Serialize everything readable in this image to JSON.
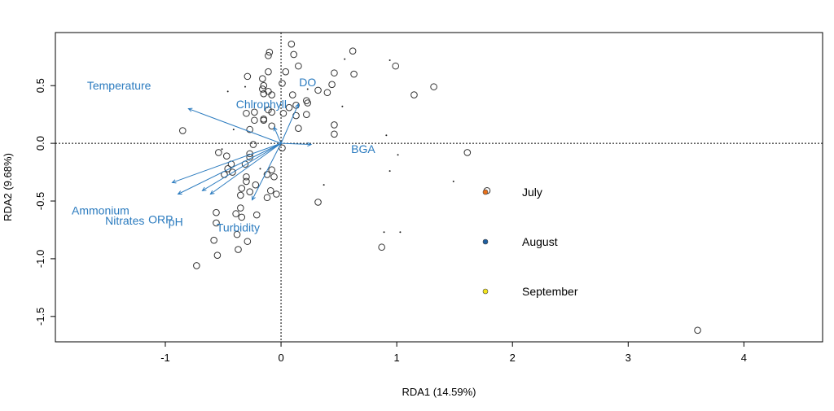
{
  "chart_data": {
    "type": "scatter",
    "subtype": "RDA biplot",
    "xlabel": "RDA1 (14.59%)",
    "ylabel": "RDA2 (9.68%)",
    "xlim": [
      -1.95,
      4.68
    ],
    "ylim": [
      -1.72,
      0.96
    ],
    "x_ticks": [
      "-1",
      "0",
      "1",
      "2",
      "3",
      "4"
    ],
    "y_ticks": [
      "-1.5",
      "-1.0",
      "-0.5",
      "0.0",
      "0.5"
    ],
    "grid": false,
    "zero_lines": "dotted",
    "arrow_color": "#2b7bbf",
    "sites": [
      [
        0.09,
        0.86
      ],
      [
        -0.1,
        0.79
      ],
      [
        -0.11,
        0.76
      ],
      [
        0.11,
        0.77
      ],
      [
        0.15,
        0.67
      ],
      [
        0.04,
        0.62
      ],
      [
        -0.11,
        0.62
      ],
      [
        -0.29,
        0.58
      ],
      [
        -0.16,
        0.56
      ],
      [
        0.01,
        0.52
      ],
      [
        -0.15,
        0.5
      ],
      [
        -0.16,
        0.47
      ],
      [
        -0.11,
        0.45
      ],
      [
        -0.08,
        0.42
      ],
      [
        -0.15,
        0.43
      ],
      [
        0.62,
        0.8
      ],
      [
        0.46,
        0.61
      ],
      [
        0.63,
        0.6
      ],
      [
        0.44,
        0.51
      ],
      [
        0.4,
        0.44
      ],
      [
        0.32,
        0.46
      ],
      [
        0.99,
        0.67
      ],
      [
        1.15,
        0.42
      ],
      [
        1.32,
        0.49
      ],
      [
        0.1,
        0.42
      ],
      [
        0.22,
        0.37
      ],
      [
        0.23,
        0.35
      ],
      [
        0.13,
        0.33
      ],
      [
        0.07,
        0.31
      ],
      [
        0.02,
        0.26
      ],
      [
        0.13,
        0.24
      ],
      [
        0.22,
        0.25
      ],
      [
        -0.3,
        0.26
      ],
      [
        -0.23,
        0.27
      ],
      [
        -0.11,
        0.29
      ],
      [
        -0.08,
        0.27
      ],
      [
        -0.23,
        0.2
      ],
      [
        -0.15,
        0.21
      ],
      [
        -0.15,
        0.2
      ],
      [
        -0.08,
        0.15
      ],
      [
        -0.27,
        0.12
      ],
      [
        0.15,
        0.13
      ],
      [
        0.46,
        0.16
      ],
      [
        0.46,
        0.08
      ],
      [
        -0.85,
        0.11
      ],
      [
        -0.24,
        -0.01
      ],
      [
        0.01,
        -0.04
      ],
      [
        -0.54,
        -0.08
      ],
      [
        -0.47,
        -0.11
      ],
      [
        -0.27,
        -0.09
      ],
      [
        -0.27,
        -0.12
      ],
      [
        -0.43,
        -0.18
      ],
      [
        -0.46,
        -0.22
      ],
      [
        -0.42,
        -0.25
      ],
      [
        -0.49,
        -0.27
      ],
      [
        -0.31,
        -0.18
      ],
      [
        -0.08,
        -0.23
      ],
      [
        -0.12,
        -0.27
      ],
      [
        -0.06,
        -0.29
      ],
      [
        -0.3,
        -0.29
      ],
      [
        -0.3,
        -0.33
      ],
      [
        -0.22,
        -0.36
      ],
      [
        -0.34,
        -0.39
      ],
      [
        -0.27,
        -0.42
      ],
      [
        -0.35,
        -0.45
      ],
      [
        -0.09,
        -0.41
      ],
      [
        -0.04,
        -0.44
      ],
      [
        -0.12,
        -0.47
      ],
      [
        0.32,
        -0.51
      ],
      [
        -0.56,
        -0.6
      ],
      [
        -0.35,
        -0.56
      ],
      [
        -0.39,
        -0.61
      ],
      [
        -0.34,
        -0.64
      ],
      [
        -0.21,
        -0.62
      ],
      [
        -0.56,
        -0.69
      ],
      [
        -0.38,
        -0.79
      ],
      [
        -0.58,
        -0.84
      ],
      [
        -0.29,
        -0.85
      ],
      [
        -0.37,
        -0.92
      ],
      [
        -0.55,
        -0.97
      ],
      [
        -0.73,
        -1.06
      ],
      [
        0.87,
        -0.9
      ],
      [
        1.61,
        -0.08
      ],
      [
        3.6,
        -1.62
      ],
      [
        1.78,
        -0.41
      ]
    ],
    "species": [
      [
        -0.46,
        0.45
      ],
      [
        -0.31,
        0.49
      ],
      [
        0.23,
        0.47
      ],
      [
        0.55,
        0.73
      ],
      [
        0.53,
        0.32
      ],
      [
        0.94,
        0.72
      ],
      [
        -0.41,
        0.12
      ],
      [
        0.91,
        0.07
      ],
      [
        1.01,
        -0.1
      ],
      [
        0.94,
        -0.24
      ],
      [
        -0.18,
        -0.22
      ],
      [
        0.37,
        -0.36
      ],
      [
        0.89,
        -0.77
      ],
      [
        1.03,
        -0.77
      ],
      [
        -0.51,
        -0.05
      ],
      [
        1.49,
        -0.33
      ]
    ],
    "arrows": [
      {
        "name": "Temperature",
        "x": -0.8,
        "y": 0.3
      },
      {
        "name": "Chlrophyll",
        "x": -0.06,
        "y": 0.14
      },
      {
        "name": "DO",
        "x": 0.15,
        "y": 0.34
      },
      {
        "name": "BGA",
        "x": 0.26,
        "y": -0.01
      },
      {
        "name": "Ammonium",
        "x": -0.94,
        "y": -0.34
      },
      {
        "name": "Nitrates",
        "x": -0.89,
        "y": -0.44
      },
      {
        "name": "ORP",
        "x": -0.68,
        "y": -0.41
      },
      {
        "name": "pH",
        "x": -0.61,
        "y": -0.44
      },
      {
        "name": "Turbidity",
        "x": -0.25,
        "y": -0.49
      }
    ],
    "legend": [
      {
        "label": "July",
        "color": "#e8701a"
      },
      {
        "label": "August",
        "color": "#1f5fa0"
      },
      {
        "label": "September",
        "color": "#f2e41c"
      }
    ],
    "legend_placement": "center-right"
  }
}
